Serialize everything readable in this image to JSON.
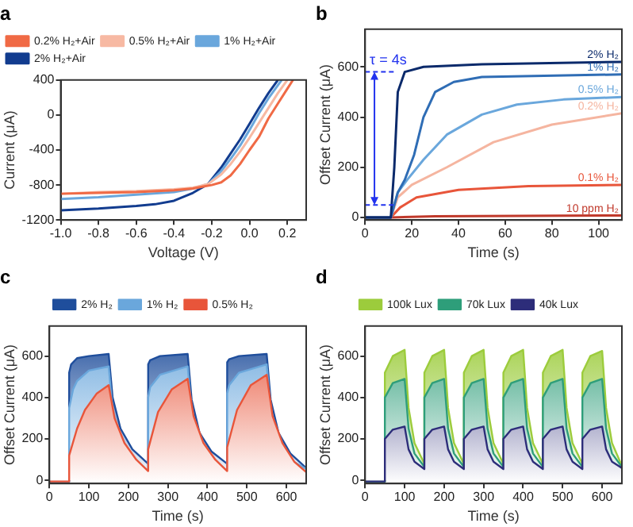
{
  "chart_data": [
    {
      "type": "line",
      "title": "a",
      "xlabel": "Voltage (V)",
      "ylabel": "Current (μA)",
      "legend": "top left",
      "xlim": [
        -1,
        0.3
      ],
      "xticks": [
        {
          "value": -1,
          "label": "-1.0"
        },
        {
          "value": -0.8,
          "label": "-0.8"
        },
        {
          "value": -0.6,
          "label": "-0.6"
        },
        {
          "value": -0.4,
          "label": "-0.4"
        },
        {
          "value": -0.2,
          "label": "-0.2"
        },
        {
          "value": 0,
          "label": "0.0"
        },
        {
          "value": 0.2,
          "label": "0.2"
        }
      ],
      "ylim": [
        -1200,
        400
      ],
      "yticks": [
        -1200,
        -800,
        -400,
        0,
        400
      ],
      "series": [
        {
          "name": "0.2% H₂+Air",
          "color": "#f06a45",
          "x": [
            -1,
            -0.8,
            -0.6,
            -0.4,
            -0.3,
            -0.25,
            -0.2,
            -0.15,
            -0.1,
            -0.05,
            0,
            0.05,
            0.1,
            0.15,
            0.2,
            0.23
          ],
          "values": [
            -900,
            -890,
            -880,
            -860,
            -840,
            -820,
            -800,
            -770,
            -690,
            -560,
            -400,
            -250,
            -40,
            130,
            300,
            400
          ]
        },
        {
          "name": "0.5% H₂+Air",
          "color": "#f7b9a3",
          "x": [
            -1,
            -0.8,
            -0.6,
            -0.4,
            -0.3,
            -0.22,
            -0.15,
            -0.1,
            -0.05,
            0,
            0.05,
            0.1,
            0.15,
            0.2
          ],
          "values": [
            -900,
            -880,
            -870,
            -850,
            -830,
            -790,
            -680,
            -560,
            -420,
            -260,
            -90,
            80,
            250,
            400
          ]
        },
        {
          "name": "1% H₂+Air",
          "color": "#6aa7dc",
          "x": [
            -1,
            -0.8,
            -0.6,
            -0.4,
            -0.3,
            -0.22,
            -0.15,
            -0.1,
            -0.05,
            0,
            0.05,
            0.1,
            0.17
          ],
          "values": [
            -960,
            -940,
            -910,
            -880,
            -840,
            -790,
            -640,
            -500,
            -350,
            -170,
            20,
            190,
            400
          ]
        },
        {
          "name": "2% H₂+Air",
          "color": "#123c8f",
          "x": [
            -1,
            -0.8,
            -0.6,
            -0.5,
            -0.4,
            -0.3,
            -0.22,
            -0.15,
            -0.1,
            -0.05,
            0,
            0.05,
            0.1,
            0.15
          ],
          "values": [
            -1090,
            -1070,
            -1040,
            -1020,
            -980,
            -890,
            -790,
            -600,
            -440,
            -280,
            -100,
            80,
            250,
            400
          ]
        }
      ]
    },
    {
      "type": "line",
      "title": "b",
      "xlabel": "Time (s)",
      "ylabel": "Offset Current (μA)",
      "xlim": [
        0,
        110
      ],
      "xticks": [
        0,
        20,
        40,
        60,
        80,
        100
      ],
      "ylim": [
        -10,
        750
      ],
      "yticks": [
        0,
        200,
        400,
        600
      ],
      "annotations": [
        {
          "text": "τ = 4s",
          "x": 4,
          "y": 580
        }
      ],
      "ref_lines": [
        {
          "axis": "y",
          "value": 580,
          "color": "#2233ee",
          "line_style": "dashed"
        },
        {
          "axis": "y",
          "value": 50,
          "color": "#2233ee",
          "line_style": "dashed"
        }
      ],
      "series": [
        {
          "name": "2% H₂",
          "color": "#0b2a6b",
          "x": [
            0,
            11,
            12.5,
            14,
            17,
            25,
            50,
            110
          ],
          "values": [
            0,
            0,
            200,
            500,
            580,
            600,
            610,
            620
          ]
        },
        {
          "name": "1% H₂",
          "color": "#2f6db5",
          "x": [
            0,
            11,
            14,
            17,
            21,
            25,
            30,
            38,
            50,
            110
          ],
          "values": [
            0,
            0,
            100,
            150,
            250,
            400,
            500,
            540,
            560,
            570
          ]
        },
        {
          "name": "0.5% H₂",
          "color": "#6aa7dc",
          "x": [
            0,
            11,
            14,
            18,
            25,
            35,
            50,
            65,
            85,
            110
          ],
          "values": [
            0,
            0,
            100,
            150,
            230,
            330,
            410,
            450,
            470,
            480
          ]
        },
        {
          "name": "0.2% H₂",
          "color": "#f5b5a0",
          "x": [
            0,
            11,
            14,
            20,
            35,
            55,
            80,
            110
          ],
          "values": [
            0,
            0,
            80,
            130,
            200,
            300,
            370,
            415
          ]
        },
        {
          "name": "0.1% H₂",
          "color": "#e8553a",
          "x": [
            0,
            11,
            15,
            22,
            40,
            70,
            110
          ],
          "values": [
            0,
            0,
            40,
            80,
            110,
            125,
            130
          ]
        },
        {
          "name": "10 ppm H₂",
          "color": "#c0392b",
          "x": [
            0,
            11,
            30,
            110
          ],
          "values": [
            0,
            0,
            5,
            8
          ]
        }
      ]
    },
    {
      "type": "area",
      "title": "c",
      "xlabel": "Time (s)",
      "ylabel": "Offset Current (μA)",
      "legend": "top",
      "xlim": [
        0,
        650
      ],
      "xticks": [
        0,
        100,
        200,
        300,
        400,
        500,
        600
      ],
      "ylim": [
        -15,
        745
      ],
      "yticks": [
        0,
        200,
        400,
        600
      ],
      "series": [
        {
          "name": "0.5% H₂",
          "color": "#e8553a",
          "x": [
            0,
            50,
            50,
            70,
            90,
            120,
            150,
            165,
            190,
            220,
            250,
            250,
            275,
            310,
            350,
            365,
            390,
            420,
            450,
            450,
            475,
            510,
            550,
            565,
            590,
            620,
            650
          ],
          "values": [
            -5,
            -5,
            120,
            250,
            340,
            420,
            460,
            300,
            180,
            100,
            45,
            150,
            330,
            440,
            490,
            310,
            180,
            100,
            45,
            160,
            340,
            460,
            510,
            310,
            180,
            90,
            40
          ]
        },
        {
          "name": "1% H₂",
          "color": "#6aa7dc",
          "x": [
            0,
            50,
            50,
            60,
            70,
            100,
            150,
            160,
            180,
            210,
            250,
            250,
            255,
            280,
            350,
            360,
            380,
            410,
            450,
            450,
            455,
            480,
            550,
            560,
            580,
            610,
            650
          ],
          "values": [
            -5,
            -5,
            350,
            440,
            480,
            530,
            550,
            340,
            190,
            100,
            45,
            400,
            450,
            510,
            550,
            340,
            190,
            100,
            45,
            420,
            460,
            520,
            560,
            340,
            190,
            100,
            55
          ]
        },
        {
          "name": "2% H₂",
          "color": "#1f4e9c",
          "x": [
            0,
            50,
            50,
            55,
            70,
            100,
            150,
            160,
            180,
            210,
            250,
            250,
            255,
            280,
            350,
            360,
            380,
            410,
            450,
            450,
            455,
            480,
            550,
            560,
            580,
            610,
            650
          ],
          "values": [
            -5,
            -5,
            520,
            560,
            590,
            600,
            610,
            400,
            250,
            150,
            80,
            560,
            580,
            600,
            610,
            390,
            230,
            140,
            80,
            570,
            585,
            600,
            610,
            390,
            230,
            130,
            60
          ]
        }
      ]
    },
    {
      "type": "area",
      "title": "d",
      "xlabel": "Time (s)",
      "ylabel": "Offset Current (μA)",
      "legend": "top",
      "xlim": [
        0,
        650
      ],
      "xticks": [
        0,
        100,
        200,
        300,
        400,
        500,
        600
      ],
      "ylim": [
        -15,
        745
      ],
      "yticks": [
        0,
        200,
        400,
        600
      ],
      "x": [
        0,
        50,
        50,
        70,
        100,
        110,
        125,
        150,
        150,
        170,
        200,
        210,
        225,
        250,
        250,
        270,
        300,
        310,
        325,
        350,
        350,
        370,
        400,
        410,
        425,
        450,
        450,
        470,
        500,
        510,
        525,
        550,
        550,
        570,
        600,
        610,
        625,
        650
      ],
      "series": [
        {
          "name": "40k Lux",
          "color": "#2d2d7a",
          "values": [
            -5,
            -5,
            200,
            245,
            260,
            150,
            90,
            55,
            200,
            245,
            260,
            150,
            90,
            55,
            200,
            245,
            260,
            150,
            90,
            55,
            200,
            245,
            260,
            150,
            90,
            55,
            200,
            245,
            260,
            150,
            90,
            55,
            200,
            245,
            260,
            150,
            90,
            60
          ]
        },
        {
          "name": "70k Lux",
          "color": "#2e9e7a",
          "values": [
            -5,
            -5,
            400,
            470,
            490,
            250,
            130,
            65,
            400,
            470,
            490,
            250,
            130,
            65,
            400,
            470,
            490,
            250,
            130,
            65,
            400,
            470,
            490,
            250,
            130,
            65,
            400,
            470,
            490,
            250,
            130,
            65,
            400,
            470,
            490,
            250,
            130,
            65
          ]
        },
        {
          "name": "100k Lux",
          "color": "#9ccc3c",
          "values": [
            -5,
            -5,
            520,
            600,
            630,
            350,
            180,
            80,
            520,
            600,
            630,
            350,
            180,
            80,
            520,
            600,
            630,
            350,
            180,
            80,
            520,
            600,
            630,
            350,
            180,
            80,
            520,
            600,
            630,
            350,
            180,
            80,
            520,
            600,
            625,
            350,
            180,
            70
          ]
        }
      ]
    }
  ]
}
